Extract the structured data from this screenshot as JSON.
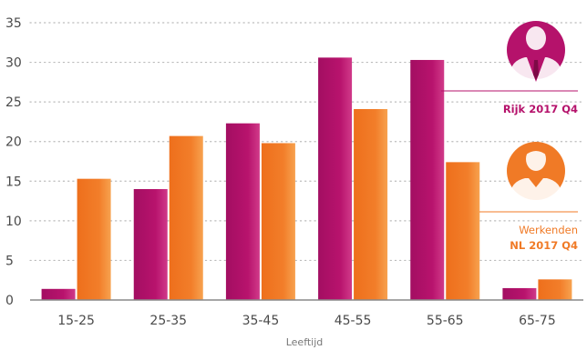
{
  "colors": {
    "rijk": "#b5126b",
    "werkenden": "#f07a26",
    "axis": "#888888",
    "grid": "#bbbbbb",
    "text": "#4a4a4a"
  },
  "chart_data": {
    "type": "bar",
    "categories": [
      "15-25",
      "25-35",
      "35-45",
      "45-55",
      "55-65",
      "65-75"
    ],
    "series": [
      {
        "name": "Rijk 2017 Q4",
        "values": [
          1.4,
          14,
          22.3,
          30.6,
          30.3,
          1.5
        ]
      },
      {
        "name": "Werkenden NL 2017 Q4",
        "values": [
          15.3,
          20.7,
          19.8,
          24.1,
          17.4,
          2.6
        ]
      }
    ],
    "yticks": [
      0,
      5,
      10,
      15,
      20,
      25,
      30,
      35
    ],
    "ylim": [
      0,
      35
    ],
    "xlabel": "Leeftijd",
    "ylabel": "",
    "grid": true,
    "legend_position": "right"
  },
  "legend": {
    "rijk_label": "Rijk 2017 Q4",
    "rijk_icon": "businessman-icon",
    "werkenden_line1": "Werkenden",
    "werkenden_line2": "NL 2017 Q4",
    "werkenden_icon": "worker-icon"
  }
}
